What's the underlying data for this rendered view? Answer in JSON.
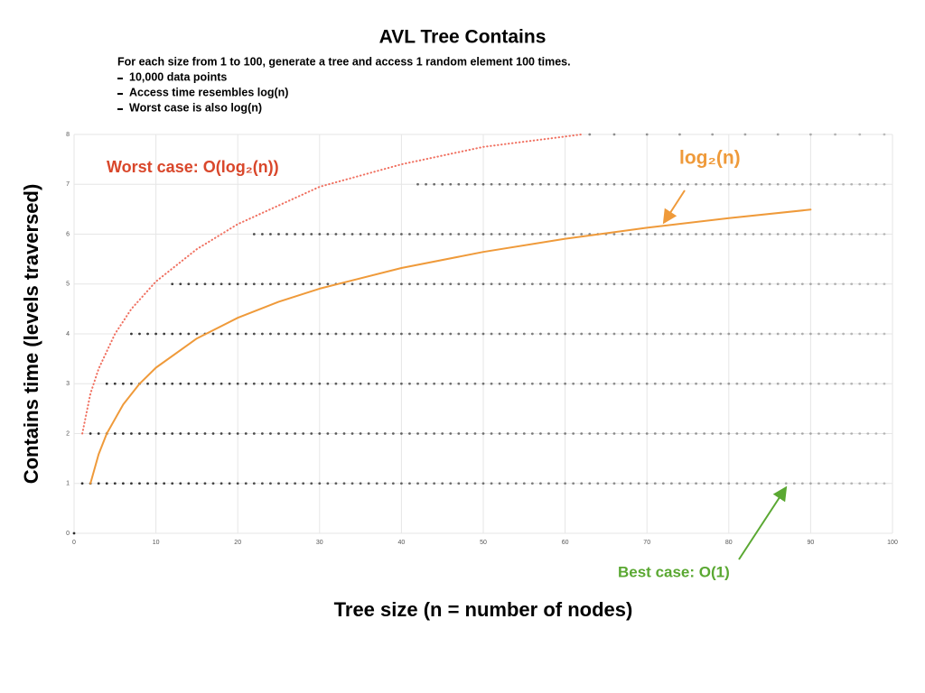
{
  "chart_data": {
    "type": "scatter",
    "title": "AVL Tree Contains",
    "description": "For each size from 1 to 100, generate a tree and access 1 random element 100 times.",
    "bullets": [
      "10,000 data points",
      "Access time resembles log(n)",
      "Worst case is also log(n)"
    ],
    "x_label": "Tree size (n = number of nodes)",
    "y_label": "Contains time (levels traversed)",
    "xlim": [
      0,
      100
    ],
    "ylim": [
      0,
      8
    ],
    "xticks": [
      0,
      10,
      20,
      30,
      40,
      50,
      60,
      70,
      80,
      90,
      100
    ],
    "yticks": [
      0,
      1,
      2,
      3,
      4,
      5,
      6,
      7,
      8
    ],
    "grid": true,
    "dot_color": "#222222",
    "series": [
      {
        "y": 0,
        "x": [
          0
        ]
      },
      {
        "y": 1,
        "x": [
          1,
          2,
          3,
          4,
          5,
          6,
          7,
          8,
          9,
          10,
          11,
          12,
          13,
          14,
          15,
          16,
          17,
          18,
          19,
          20,
          21,
          22,
          23,
          24,
          25,
          26,
          27,
          28,
          29,
          30,
          31,
          32,
          33,
          34,
          35,
          36,
          37,
          38,
          39,
          40,
          41,
          42,
          43,
          44,
          45,
          46,
          47,
          48,
          49,
          50,
          51,
          52,
          53,
          54,
          55,
          56,
          57,
          58,
          59,
          60,
          61,
          62,
          63,
          64,
          65,
          66,
          67,
          68,
          69,
          70,
          71,
          72,
          73,
          74,
          75,
          76,
          77,
          78,
          79,
          80,
          81,
          82,
          83,
          84,
          85,
          86,
          87,
          88,
          89,
          90,
          91,
          92,
          93,
          94,
          95,
          96,
          97,
          98,
          99
        ]
      },
      {
        "y": 2,
        "x": [
          2,
          3,
          4,
          5,
          6,
          7,
          8,
          9,
          10,
          11,
          12,
          13,
          14,
          15,
          16,
          17,
          18,
          19,
          20,
          21,
          22,
          23,
          24,
          25,
          26,
          27,
          28,
          29,
          30,
          31,
          32,
          33,
          34,
          35,
          36,
          37,
          38,
          39,
          40,
          41,
          42,
          43,
          44,
          45,
          46,
          47,
          48,
          49,
          50,
          51,
          52,
          53,
          54,
          55,
          56,
          57,
          58,
          59,
          60,
          61,
          62,
          63,
          64,
          65,
          66,
          67,
          68,
          69,
          70,
          71,
          72,
          73,
          74,
          75,
          76,
          77,
          78,
          79,
          80,
          81,
          82,
          83,
          84,
          85,
          86,
          87,
          88,
          89,
          90,
          91,
          92,
          93,
          94,
          95,
          96,
          97,
          98,
          99
        ]
      },
      {
        "y": 3,
        "x": [
          4,
          5,
          6,
          7,
          8,
          9,
          10,
          11,
          12,
          13,
          14,
          15,
          16,
          17,
          18,
          19,
          20,
          21,
          22,
          23,
          24,
          25,
          26,
          27,
          28,
          29,
          30,
          31,
          32,
          33,
          34,
          35,
          36,
          37,
          38,
          39,
          40,
          41,
          42,
          43,
          44,
          45,
          46,
          47,
          48,
          49,
          50,
          51,
          52,
          53,
          54,
          55,
          56,
          57,
          58,
          59,
          60,
          61,
          62,
          63,
          64,
          65,
          66,
          67,
          68,
          69,
          70,
          71,
          72,
          73,
          74,
          75,
          76,
          77,
          78,
          79,
          80,
          81,
          82,
          83,
          84,
          85,
          86,
          87,
          88,
          89,
          90,
          91,
          92,
          93,
          94,
          95,
          96,
          97,
          98,
          99
        ]
      },
      {
        "y": 4,
        "x": [
          7,
          8,
          9,
          10,
          11,
          12,
          13,
          14,
          15,
          16,
          17,
          18,
          19,
          20,
          21,
          22,
          23,
          24,
          25,
          26,
          27,
          28,
          29,
          30,
          31,
          32,
          33,
          34,
          35,
          36,
          37,
          38,
          39,
          40,
          41,
          42,
          43,
          44,
          45,
          46,
          47,
          48,
          49,
          50,
          51,
          52,
          53,
          54,
          55,
          56,
          57,
          58,
          59,
          60,
          61,
          62,
          63,
          64,
          65,
          66,
          67,
          68,
          69,
          70,
          71,
          72,
          73,
          74,
          75,
          76,
          77,
          78,
          79,
          80,
          81,
          82,
          83,
          84,
          85,
          86,
          87,
          88,
          89,
          90,
          91,
          92,
          93,
          94,
          95,
          96,
          97,
          98,
          99
        ]
      },
      {
        "y": 5,
        "x": [
          12,
          13,
          14,
          15,
          16,
          17,
          18,
          19,
          20,
          21,
          22,
          23,
          24,
          25,
          26,
          27,
          28,
          29,
          30,
          31,
          32,
          33,
          34,
          35,
          36,
          37,
          38,
          39,
          40,
          41,
          42,
          43,
          44,
          45,
          46,
          47,
          48,
          49,
          50,
          51,
          52,
          53,
          54,
          55,
          56,
          57,
          58,
          59,
          60,
          61,
          62,
          63,
          64,
          65,
          66,
          67,
          68,
          69,
          70,
          71,
          72,
          73,
          74,
          75,
          76,
          77,
          78,
          79,
          80,
          81,
          82,
          83,
          84,
          85,
          86,
          87,
          88,
          89,
          90,
          91,
          92,
          93,
          94,
          95,
          96,
          97,
          98,
          99
        ]
      },
      {
        "y": 6,
        "x": [
          22,
          23,
          24,
          25,
          26,
          27,
          28,
          29,
          30,
          31,
          32,
          33,
          34,
          35,
          36,
          37,
          38,
          39,
          40,
          41,
          42,
          43,
          44,
          45,
          46,
          47,
          48,
          49,
          50,
          51,
          52,
          53,
          54,
          55,
          56,
          57,
          58,
          59,
          60,
          61,
          62,
          63,
          64,
          65,
          66,
          67,
          68,
          69,
          70,
          71,
          72,
          73,
          74,
          75,
          76,
          77,
          78,
          79,
          80,
          81,
          82,
          83,
          84,
          85,
          86,
          87,
          88,
          89,
          90,
          91,
          92,
          93,
          94,
          95,
          96,
          97,
          98,
          99
        ]
      },
      {
        "y": 7,
        "x": [
          42,
          43,
          44,
          45,
          46,
          47,
          48,
          49,
          50,
          51,
          52,
          53,
          54,
          55,
          56,
          57,
          58,
          59,
          60,
          61,
          62,
          63,
          64,
          65,
          66,
          67,
          68,
          69,
          70,
          71,
          72,
          73,
          74,
          75,
          76,
          77,
          78,
          79,
          80,
          81,
          82,
          83,
          84,
          85,
          86,
          87,
          88,
          89,
          90,
          91,
          92,
          93,
          94,
          95,
          96,
          97,
          98,
          99
        ]
      },
      {
        "y": 8,
        "x": [
          63,
          66,
          70,
          74,
          78,
          82,
          86,
          90,
          93,
          96,
          99
        ]
      }
    ],
    "curves": [
      {
        "color": "#ef9a3a",
        "style": "solid",
        "x": [
          2,
          3,
          4,
          6,
          8,
          10,
          15,
          20,
          25,
          30,
          40,
          50,
          60,
          70,
          80,
          90
        ],
        "values": [
          1,
          1.585,
          2,
          2.585,
          3,
          3.322,
          3.907,
          4.322,
          4.644,
          4.907,
          5.322,
          5.644,
          5.907,
          6.129,
          6.322,
          6.492
        ]
      },
      {
        "color": "#f07060",
        "style": "dotted",
        "x": [
          1,
          2,
          3,
          5,
          7,
          10,
          15,
          20,
          30,
          40,
          50,
          62
        ],
        "values": [
          2,
          2.8,
          3.3,
          4.0,
          4.5,
          5.05,
          5.7,
          6.2,
          6.95,
          7.4,
          7.75,
          8
        ]
      }
    ],
    "annotations": [
      {
        "text": "Worst case: O(log₂(n))",
        "color": "#d9472b"
      },
      {
        "text": "log₂(n)",
        "color": "#ef9a3a"
      },
      {
        "text": "Best case: O(1)",
        "color": "#5aa832"
      }
    ]
  }
}
